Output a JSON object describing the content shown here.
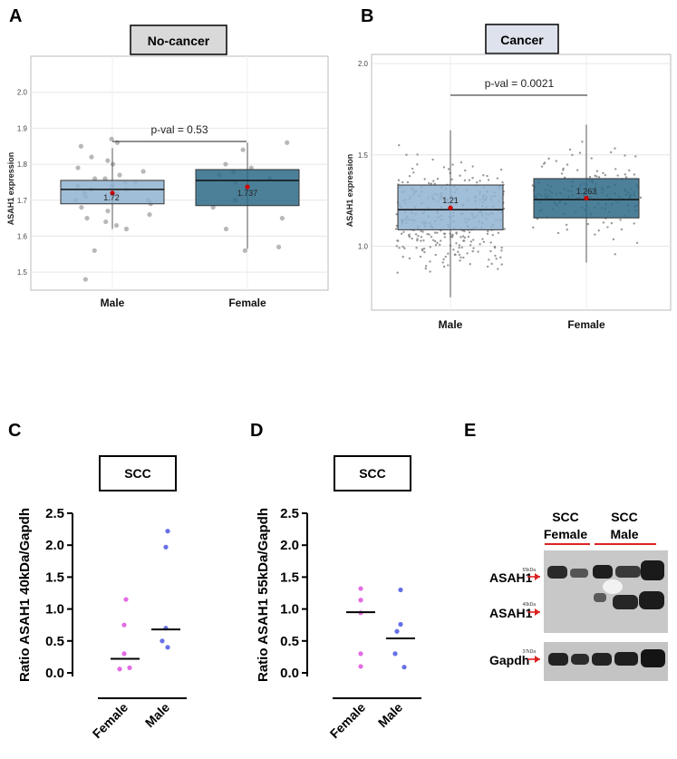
{
  "panels": {
    "A": {
      "letter": "A",
      "title": "No-cancer",
      "ylabel": "ASAH1 expression",
      "pval": "p-val = 0.53",
      "yticks": [
        "1.5",
        "1.6",
        "1.7",
        "1.8",
        "1.9",
        "2.0"
      ],
      "categories": [
        "Male",
        "Female"
      ],
      "mean_labels": [
        "1.72",
        "1.737"
      ]
    },
    "B": {
      "letter": "B",
      "title": "Cancer",
      "ylabel": "ASAH1 expression",
      "pval": "p-val = 0.0021",
      "yticks": [
        "1.0",
        "1.5",
        "2.0"
      ],
      "categories": [
        "Male",
        "Female"
      ],
      "mean_labels": [
        "1.21",
        "1.263"
      ]
    },
    "C": {
      "letter": "C",
      "title": "SCC",
      "ylabel": "Ratio ASAH1 40kDa/Gapdh",
      "yticks": [
        "0.0",
        "0.5",
        "1.0",
        "1.5",
        "2.0",
        "2.5"
      ],
      "categories": [
        "Female",
        "Male"
      ]
    },
    "D": {
      "letter": "D",
      "title": "SCC",
      "ylabel": "Ratio ASAH1 55kDa/Gapdh",
      "yticks": [
        "0.0",
        "0.5",
        "1.0",
        "1.5",
        "2.0",
        "2.5"
      ],
      "categories": [
        "Female",
        "Male"
      ]
    },
    "E": {
      "letter": "E",
      "group1_line1": "SCC",
      "group1_line2": "Female",
      "group2_line1": "SCC",
      "group2_line2": "Male",
      "band1_label": "ASAH1",
      "band1_kda": "55kDa",
      "band2_label": "ASAH1",
      "band2_kda": "40kDa",
      "gapdh_label": "Gapdh",
      "gapdh_kda": "37kDa"
    }
  },
  "colors": {
    "box_male_light": "#8fb3d0",
    "box_female_dark": "#2d6a87",
    "mean_dot": "#cc0000",
    "female_dot": "#e36be3",
    "male_dot": "#6670e6",
    "title_fill": "#d9d9d9",
    "title_fill_b": "#dde2ec",
    "arrow": "#dd2222"
  },
  "chart_data": [
    {
      "panel": "A",
      "type": "box",
      "title": "No-cancer",
      "ylabel": "ASAH1 expression",
      "ylim": [
        1.45,
        2.1
      ],
      "categories": [
        "Male",
        "Female"
      ],
      "boxes": [
        {
          "name": "Male",
          "q1": 1.69,
          "median": 1.73,
          "q3": 1.755,
          "whisker_low": 1.62,
          "whisker_high": 1.845,
          "mean": 1.72
        },
        {
          "name": "Female",
          "q1": 1.685,
          "median": 1.755,
          "q3": 1.785,
          "whisker_low": 1.565,
          "whisker_high": 1.86,
          "mean": 1.737
        }
      ],
      "points": [
        {
          "group": "Male",
          "values": [
            1.87,
            1.86,
            1.85,
            1.82,
            1.81,
            1.8,
            1.79,
            1.78,
            1.77,
            1.76,
            1.76,
            1.75,
            1.75,
            1.74,
            1.74,
            1.73,
            1.73,
            1.72,
            1.72,
            1.71,
            1.71,
            1.7,
            1.7,
            1.69,
            1.68,
            1.67,
            1.66,
            1.65,
            1.64,
            1.63,
            1.62,
            1.56,
            1.48
          ]
        },
        {
          "group": "Female",
          "values": [
            1.86,
            1.84,
            1.8,
            1.79,
            1.78,
            1.77,
            1.76,
            1.75,
            1.7,
            1.68,
            1.65,
            1.62,
            1.57,
            1.56
          ]
        }
      ],
      "annotation": "p-val = 0.53"
    },
    {
      "panel": "B",
      "type": "box",
      "title": "Cancer",
      "ylabel": "ASAH1 expression",
      "ylim": [
        0.65,
        2.05
      ],
      "categories": [
        "Male",
        "Female"
      ],
      "boxes": [
        {
          "name": "Male",
          "q1": 1.09,
          "median": 1.2,
          "q3": 1.335,
          "whisker_low": 0.72,
          "whisker_high": 1.635,
          "mean": 1.21
        },
        {
          "name": "Female",
          "q1": 1.155,
          "median": 1.255,
          "q3": 1.37,
          "whisker_low": 0.91,
          "whisker_high": 1.665,
          "mean": 1.263
        }
      ],
      "annotation": "p-val = 0.0021"
    },
    {
      "panel": "C",
      "type": "scatter",
      "title": "SCC",
      "ylabel": "Ratio ASAH1 40kDa/Gapdh",
      "ylim": [
        0,
        2.5
      ],
      "categories": [
        "Female",
        "Male"
      ],
      "series": [
        {
          "name": "Female",
          "values": [
            1.15,
            0.75,
            0.3,
            0.08,
            0.06
          ],
          "median": 0.22
        },
        {
          "name": "Male",
          "values": [
            2.22,
            1.97,
            0.7,
            0.5,
            0.4
          ],
          "median": 0.68
        }
      ]
    },
    {
      "panel": "D",
      "type": "scatter",
      "title": "SCC",
      "ylabel": "Ratio ASAH1 55kDa/Gapdh",
      "ylim": [
        0,
        2.5
      ],
      "categories": [
        "Female",
        "Male"
      ],
      "series": [
        {
          "name": "Female",
          "values": [
            1.32,
            1.14,
            0.94,
            0.3,
            0.1
          ],
          "median": 0.95
        },
        {
          "name": "Male",
          "values": [
            1.3,
            0.76,
            0.65,
            0.3,
            0.09
          ],
          "median": 0.54
        }
      ]
    }
  ]
}
